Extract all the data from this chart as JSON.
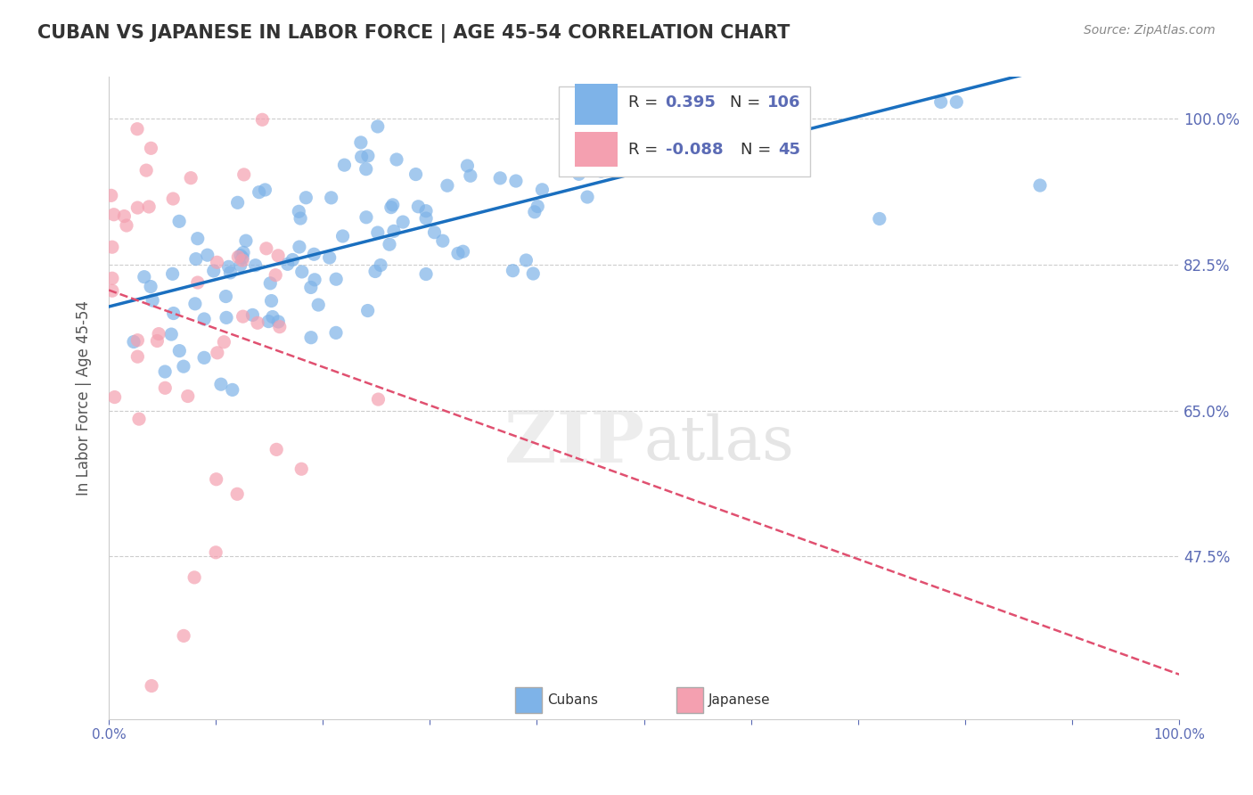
{
  "title": "CUBAN VS JAPANESE IN LABOR FORCE | AGE 45-54 CORRELATION CHART",
  "source_text": "Source: ZipAtlas.com",
  "xlabel": "",
  "ylabel": "In Labor Force | Age 45-54",
  "xlim": [
    0.0,
    1.0
  ],
  "ylim": [
    0.28,
    1.05
  ],
  "yticks": [
    0.475,
    0.65,
    0.825,
    1.0
  ],
  "ytick_labels": [
    "47.5%",
    "65.0%",
    "82.5%",
    "100.0%"
  ],
  "xticks": [
    0.0,
    0.1,
    0.2,
    0.3,
    0.4,
    0.5,
    0.6,
    0.7,
    0.8,
    0.9,
    1.0
  ],
  "xtick_labels": [
    "0.0%",
    "",
    "",
    "",
    "",
    "",
    "",
    "",
    "",
    "",
    "100.0%"
  ],
  "blue_color": "#7EB3E8",
  "pink_color": "#F4A0B0",
  "blue_line_color": "#1A6FBF",
  "pink_line_color": "#E05070",
  "grid_color": "#CCCCCC",
  "title_color": "#333333",
  "axis_label_color": "#5B6BB5",
  "legend_R1_val": "0.395",
  "legend_N1_val": "106",
  "legend_R2_val": "-0.088",
  "legend_N2_val": "45",
  "legend_label1": "Cubans",
  "legend_label2": "Japanese",
  "blue_scatter_seed": 42,
  "pink_scatter_seed": 7,
  "R_blue": 0.395,
  "N_blue": 106,
  "R_pink": -0.088,
  "N_pink": 45
}
